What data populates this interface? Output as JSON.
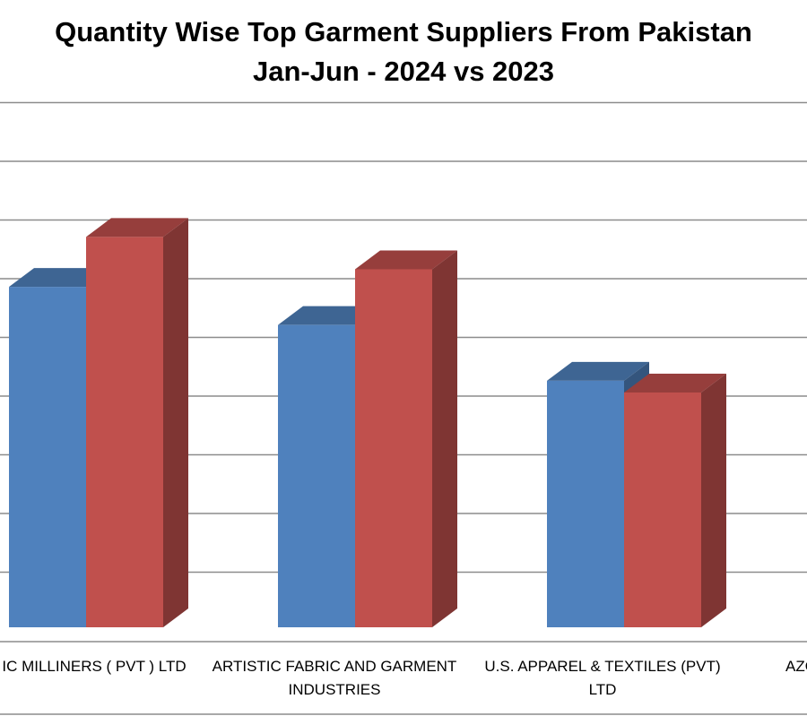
{
  "chart_data": {
    "type": "bar",
    "title_lines": [
      "Quantity Wise Top Garment Suppliers From Pakistan",
      "Jan-Jun - 2024 vs 2023"
    ],
    "categories": [
      {
        "lines": [
          "IC MILLINERS ( PVT ) LTD"
        ]
      },
      {
        "lines": [
          "ARTISTIC FABRIC AND GARMENT",
          "INDUSTRIES"
        ]
      },
      {
        "lines": [
          "U.S. APPAREL & TEXTILES (PVT)",
          "LTD"
        ]
      },
      {
        "lines": [
          "AZO"
        ]
      }
    ],
    "series": [
      {
        "color": "#4f81bd",
        "values": [
          5.8,
          5.15,
          4.2,
          null
        ]
      },
      {
        "color": "#c0504d",
        "values": [
          6.65,
          6.1,
          4.0,
          null
        ]
      }
    ],
    "ylim": [
      0,
      8.5
    ],
    "grid": true,
    "style": "3d-column"
  }
}
